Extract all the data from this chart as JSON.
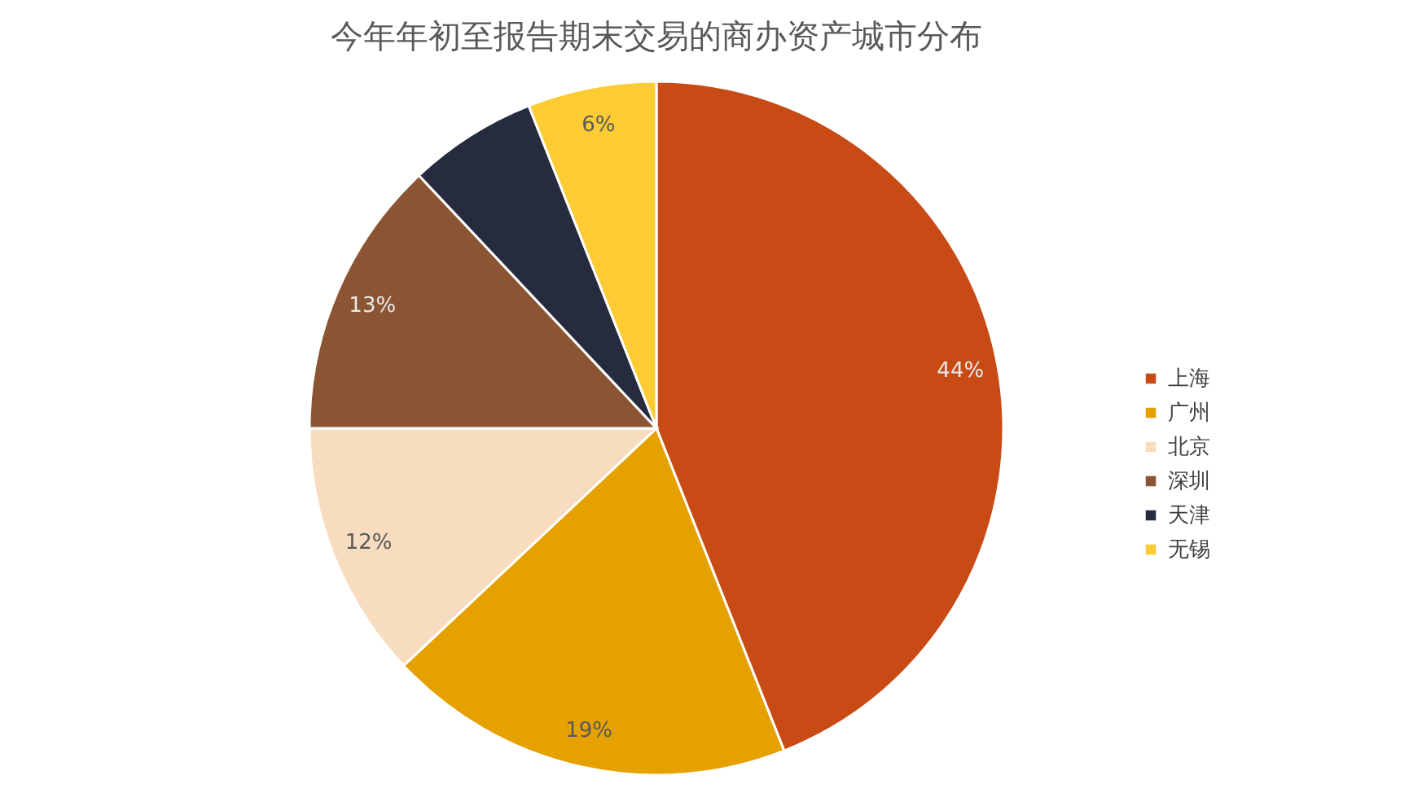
{
  "chart_data": {
    "type": "pie",
    "title": "今年年初至报告期末交易的商办资产城市分布",
    "categories": [
      "上海",
      "广州",
      "北京",
      "深圳",
      "天津",
      "无锡"
    ],
    "values": [
      44,
      19,
      12,
      13,
      6,
      6
    ],
    "colors": [
      "#c84b15",
      "#e5a100",
      "#f8dcc0",
      "#8b5533",
      "#272b40",
      "#fdcb33"
    ],
    "value_labels": [
      "44%",
      "19%",
      "12%",
      "13%",
      null,
      "6%"
    ],
    "legend": "right"
  }
}
